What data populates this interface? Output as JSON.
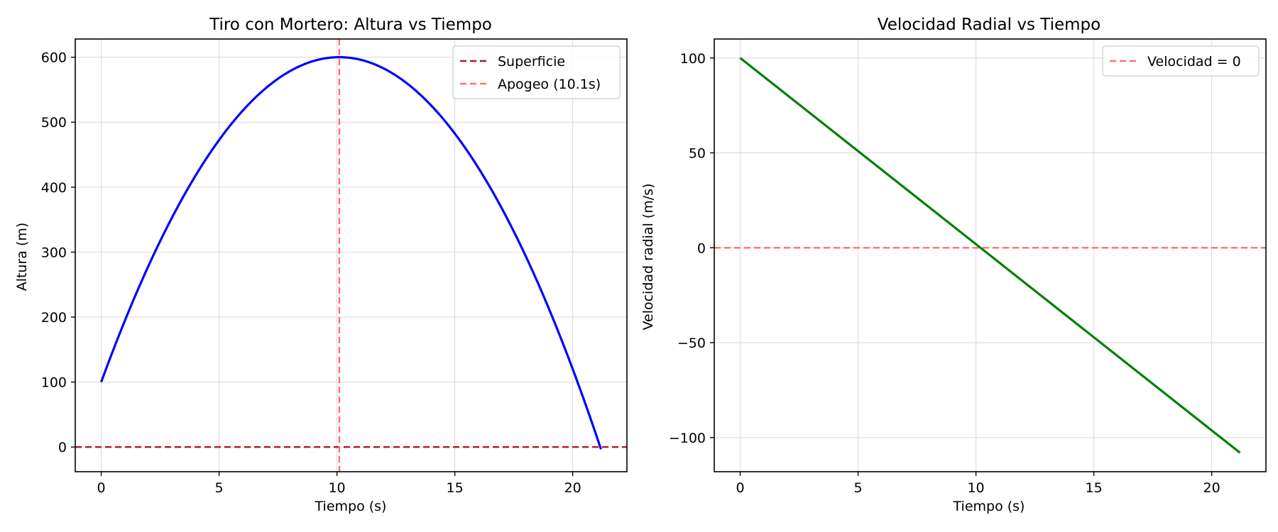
{
  "chart_data": [
    {
      "type": "line",
      "title": "Tiro con Mortero: Altura vs Tiempo",
      "xlabel": "Tiempo (s)",
      "ylabel": "Altura (m)",
      "xlim": [
        -1.1,
        22.3
      ],
      "ylim": [
        -38,
        628
      ],
      "xticks": [
        0,
        5,
        10,
        15,
        20
      ],
      "yticks": [
        0,
        100,
        200,
        300,
        400,
        500,
        600
      ],
      "xtick_labels": [
        "0",
        "5",
        "10",
        "15",
        "20"
      ],
      "ytick_labels": [
        "0",
        "100",
        "200",
        "300",
        "400",
        "500",
        "600"
      ],
      "grid": true,
      "legend_position": "top-right",
      "series": [
        {
          "label": "",
          "color": "#0000ff",
          "style": "solid",
          "kind": "function",
          "fn": "quadratic",
          "h0": 100,
          "v0": 99,
          "g": 4.9,
          "x_start": 0,
          "x_end": 21.2
        }
      ],
      "reference_lines": [
        {
          "label": "Superficie",
          "orientation": "horizontal",
          "value": 0,
          "color": "#b2182b",
          "style": "dashed",
          "in_legend": true
        },
        {
          "label": "Apogeo (10.1s)",
          "orientation": "vertical",
          "value": 10.1,
          "color": "#ff7070",
          "style": "dashed",
          "in_legend": true
        }
      ]
    },
    {
      "type": "line",
      "title": "Velocidad Radial vs Tiempo",
      "xlabel": "Tiempo (s)",
      "ylabel": "Velocidad radial (m/s)",
      "xlim": [
        -1.1,
        22.3
      ],
      "ylim": [
        -118,
        110
      ],
      "xticks": [
        0,
        5,
        10,
        15,
        20
      ],
      "yticks": [
        100,
        50,
        0,
        -50,
        -100
      ],
      "xtick_labels": [
        "0",
        "5",
        "10",
        "15",
        "20"
      ],
      "ytick_labels": [
        "100",
        "50",
        "0",
        "−50",
        "−100"
      ],
      "grid": true,
      "legend_position": "top-right",
      "series": [
        {
          "label": "",
          "color": "#008000",
          "style": "solid",
          "kind": "points",
          "x": [
            0,
            21.2
          ],
          "y": [
            100,
            -108
          ]
        }
      ],
      "reference_lines": [
        {
          "label": "Velocidad = 0",
          "orientation": "horizontal",
          "value": 0,
          "color": "#ff7070",
          "style": "dashed",
          "in_legend": true
        }
      ]
    }
  ]
}
